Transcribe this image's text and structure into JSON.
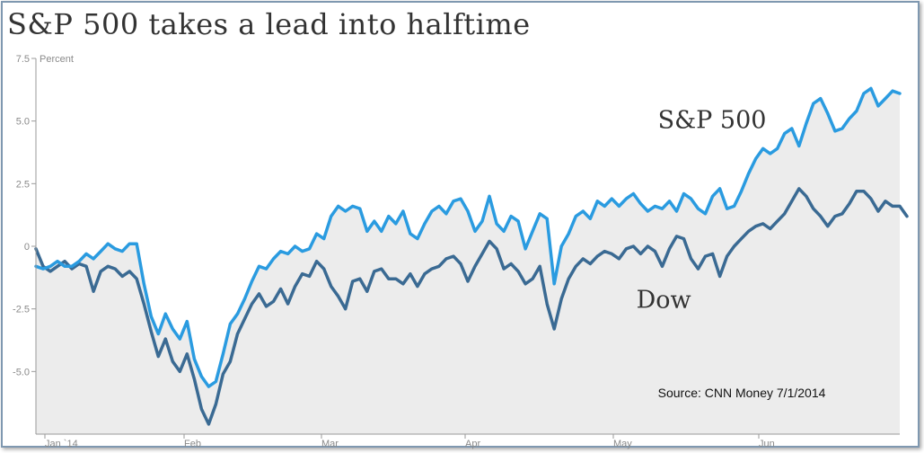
{
  "chart_data": {
    "type": "line",
    "title": "S&P 500 takes a lead into halftime",
    "ylabel": "Percent",
    "ylim": [
      -7.5,
      7.5
    ],
    "yticks": [
      {
        "v": 7.5,
        "label": "7.5"
      },
      {
        "v": 5.0,
        "label": "5.0"
      },
      {
        "v": 2.5,
        "label": "2.5"
      },
      {
        "v": 0,
        "label": "0"
      },
      {
        "v": -2.5,
        "label": "-2.5"
      },
      {
        "v": -5.0,
        "label": "-5.0"
      }
    ],
    "xticks": [
      "Jan `14",
      "Feb",
      "Mar",
      "Apr",
      "May",
      "Jun"
    ],
    "grid": false,
    "area_fill": true,
    "series": [
      {
        "name": "S&P 500",
        "color": "#2a9be0",
        "values": [
          -0.8,
          -0.9,
          -0.8,
          -0.6,
          -0.8,
          -0.8,
          -0.6,
          -0.3,
          -0.5,
          -0.2,
          0.1,
          -0.1,
          -0.2,
          0.1,
          0.1,
          -1.5,
          -2.8,
          -3.5,
          -2.7,
          -3.3,
          -3.7,
          -3.0,
          -4.5,
          -5.2,
          -5.6,
          -5.4,
          -4.3,
          -3.1,
          -2.7,
          -2.1,
          -1.4,
          -0.8,
          -0.9,
          -0.5,
          -0.2,
          -0.3,
          0.0,
          -0.2,
          -0.1,
          0.5,
          0.3,
          1.2,
          1.6,
          1.4,
          1.6,
          1.5,
          0.6,
          1.0,
          0.6,
          1.2,
          0.9,
          1.4,
          0.5,
          0.3,
          0.9,
          1.4,
          1.6,
          1.3,
          1.8,
          1.9,
          1.4,
          0.6,
          1.0,
          2.0,
          0.9,
          0.6,
          1.2,
          1.0,
          -0.1,
          0.6,
          1.3,
          1.1,
          -1.5,
          0.0,
          0.5,
          1.2,
          1.4,
          1.1,
          1.8,
          1.6,
          1.9,
          1.6,
          1.9,
          2.1,
          1.7,
          1.4,
          1.6,
          1.5,
          1.8,
          1.4,
          2.1,
          1.9,
          1.5,
          1.3,
          2.0,
          2.3,
          1.5,
          1.6,
          2.2,
          2.9,
          3.5,
          3.9,
          3.7,
          3.9,
          4.5,
          4.7,
          4.0,
          4.9,
          5.7,
          5.9,
          5.3,
          4.6,
          4.7,
          5.1,
          5.4,
          6.1,
          6.3,
          5.6,
          5.9,
          6.2,
          6.1
        ]
      },
      {
        "name": "Dow",
        "color": "#3a6a93",
        "values": [
          -0.1,
          -0.8,
          -1.0,
          -0.8,
          -0.6,
          -0.9,
          -0.7,
          -0.8,
          -1.8,
          -1.0,
          -0.8,
          -0.9,
          -1.2,
          -1.0,
          -1.3,
          -2.3,
          -3.4,
          -4.4,
          -3.7,
          -4.6,
          -5.0,
          -4.3,
          -5.3,
          -6.5,
          -7.1,
          -6.3,
          -5.1,
          -4.6,
          -3.5,
          -2.9,
          -2.3,
          -1.9,
          -2.4,
          -2.2,
          -1.7,
          -2.3,
          -1.6,
          -1.1,
          -1.2,
          -0.6,
          -0.9,
          -1.6,
          -2.0,
          -2.5,
          -1.4,
          -1.3,
          -1.8,
          -1.0,
          -0.9,
          -1.3,
          -1.3,
          -1.5,
          -1.1,
          -1.6,
          -1.1,
          -0.9,
          -0.8,
          -0.5,
          -0.4,
          -0.7,
          -1.4,
          -0.8,
          -0.3,
          0.2,
          -0.1,
          -0.9,
          -0.7,
          -1.0,
          -1.5,
          -1.3,
          -0.8,
          -2.3,
          -3.3,
          -2.1,
          -1.3,
          -0.8,
          -0.5,
          -0.7,
          -0.4,
          -0.2,
          -0.3,
          -0.5,
          -0.1,
          0.0,
          -0.3,
          0.0,
          -0.2,
          -0.8,
          -0.1,
          0.4,
          0.3,
          -0.5,
          -0.9,
          -0.4,
          -0.3,
          -1.2,
          -0.4,
          0.0,
          0.3,
          0.6,
          0.8,
          0.9,
          0.7,
          1.0,
          1.3,
          1.8,
          2.3,
          2.0,
          1.5,
          1.2,
          0.8,
          1.2,
          1.3,
          1.7,
          2.2,
          2.2,
          1.9,
          1.4,
          1.8,
          1.6,
          1.6,
          1.2
        ]
      }
    ],
    "annotations": [
      {
        "text": "S&P 500",
        "x_frac": 0.72,
        "y": 5.0
      },
      {
        "text": "Dow",
        "x_frac": 0.695,
        "y": -2.5
      },
      {
        "text": "Source: CNN Money 7/1/2014",
        "x_frac": 0.72,
        "y": -6.0
      }
    ]
  }
}
